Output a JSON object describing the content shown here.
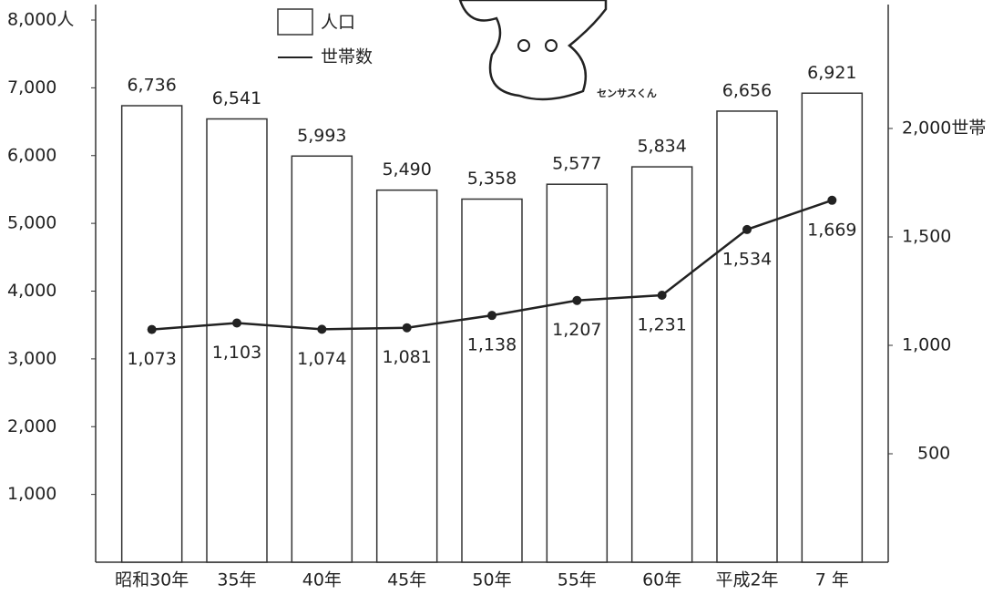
{
  "chart_data": {
    "type": "bar",
    "categories": [
      "昭和30年",
      "35年",
      "40年",
      "45年",
      "50年",
      "55年",
      "60年",
      "平成2年",
      "7 年"
    ],
    "series": [
      {
        "name": "人口",
        "type": "bar",
        "color": "#ffffff",
        "values": [
          6736,
          6541,
          5993,
          5490,
          5358,
          5577,
          5834,
          6656,
          6921
        ],
        "value_labels": [
          "6,736",
          "6,541",
          "5,993",
          "5,490",
          "5,358",
          "5,577",
          "5,834",
          "6,656",
          "6,921"
        ]
      },
      {
        "name": "世帯数",
        "type": "line",
        "axis": "y2",
        "color": "#222222",
        "values": [
          1073,
          1103,
          1074,
          1081,
          1138,
          1207,
          1231,
          1534,
          1669
        ],
        "value_labels": [
          "1,073",
          "1,103",
          "1,074",
          "1,081",
          "1,138",
          "1,207",
          "1,231",
          "1,534",
          "1,669"
        ]
      }
    ],
    "ylim": [
      0,
      8000
    ],
    "yticks": [
      {
        "value": 1000,
        "label": "1,000"
      },
      {
        "value": 2000,
        "label": "2,000"
      },
      {
        "value": 3000,
        "label": "3,000"
      },
      {
        "value": 4000,
        "label": "4,000"
      },
      {
        "value": 5000,
        "label": "5,000"
      },
      {
        "value": 6000,
        "label": "6,000"
      },
      {
        "value": 7000,
        "label": "7,000"
      },
      {
        "value": 8000,
        "label": "8,000人"
      }
    ],
    "y2lim": [
      0,
      2500
    ],
    "y2ticks": [
      500,
      {
        "value": 1000,
        "label": "1,000"
      },
      {
        "value": 1500,
        "label": "1,500"
      },
      {
        "value": 2000,
        "label": "2,000世帯"
      }
    ],
    "annotation": "センサスくん"
  }
}
